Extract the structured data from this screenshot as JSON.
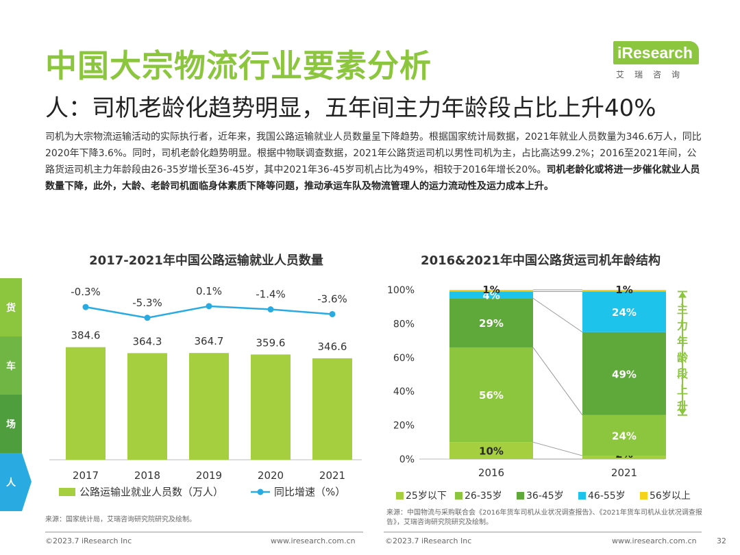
{
  "header": {
    "title": "中国大宗物流行业要素分析",
    "subtitle": "人：司机老龄化趋势明显，五年间主力年龄段占比上升40%",
    "logo_text": "iResearch",
    "logo_cn": "艾瑞咨询"
  },
  "paragraph": {
    "normal": "司机为大宗物流运输活动的实际执行者，近年来，我国公路运输就业人员数量呈下降趋势。根据国家统计局数据，2021年就业人员数量为346.6万人，同比2020年下降3.6%。同时，司机老龄化趋势明显。根据中物联调查数据，2021年公路货运司机以男性司机为主，占比高达99.2%；2016至2021年间，公路货运司机主力年龄段由26-35岁增长至36-45岁，其中2021年36-45岁司机占比为49%，相较于2016年增长20%。",
    "bold": "司机老龄化或将进一步催化就业人员数量下降，此外，大龄、老龄司机面临身体素质下降等问题，推动承运车队及物流管理人的运力流动性及运力成本上升。"
  },
  "sidebar": {
    "items": [
      "货",
      "车",
      "场",
      "人"
    ]
  },
  "colors": {
    "green_light": "#a6cf3f",
    "green_mid": "#8cc63f",
    "green_dark": "#5fa83a",
    "cyan": "#1ec3ec",
    "yellow": "#f5d31a",
    "line": "#29abe2",
    "side1": "#8cc63f",
    "side2": "#6fb644",
    "side3": "#4f9e3e"
  },
  "chart_data": [
    {
      "type": "bar",
      "title": "2017-2021年中国公路运输就业人员数量",
      "categories": [
        "2017",
        "2018",
        "2019",
        "2020",
        "2021"
      ],
      "series": [
        {
          "name": "公路运输业就业人员数（万人）",
          "type": "bar",
          "values": [
            384.6,
            364.3,
            364.7,
            359.6,
            346.6
          ],
          "labels": [
            "384.6",
            "364.3",
            "364.7",
            "359.6",
            "346.6"
          ]
        },
        {
          "name": "同比增速（%）",
          "type": "line",
          "values": [
            -0.3,
            -5.3,
            0.1,
            -1.4,
            -3.6
          ],
          "labels": [
            "-0.3%",
            "-5.3%",
            "0.1%",
            "-1.4%",
            "-3.6%"
          ]
        }
      ],
      "ylim": [
        0,
        550
      ],
      "legend": "bottom"
    },
    {
      "type": "bar",
      "stacked": true,
      "title": "2016&2021年中国公路货运司机年龄结构",
      "categories": [
        "2016",
        "2021"
      ],
      "series": [
        {
          "name": "25岁以下",
          "values": [
            10,
            2
          ]
        },
        {
          "name": "26-35岁",
          "values": [
            56,
            24
          ]
        },
        {
          "name": "36-45岁",
          "values": [
            29,
            49
          ]
        },
        {
          "name": "46-55岁",
          "values": [
            4,
            24
          ]
        },
        {
          "name": "56岁以上",
          "values": [
            1,
            1
          ]
        }
      ],
      "y_ticks": [
        "0%",
        "20%",
        "40%",
        "60%",
        "80%",
        "100%"
      ],
      "ylim": [
        0,
        100
      ],
      "annotation": "主力年龄段上升",
      "legend": "bottom"
    }
  ],
  "sources": {
    "left": "来源：国家统计局，艾瑞咨询研究院研究及绘制。",
    "right": "来源：中国物流与采购联合会《2016年货车司机从业状况调查报告》、《2021年货车司机从业状况调查报告》，艾瑞咨询研究院研究及绘制。"
  },
  "footer": {
    "copyright": "©2023.7 iResearch Inc",
    "url": "www.iresearch.com.cn",
    "page_number": "32"
  }
}
